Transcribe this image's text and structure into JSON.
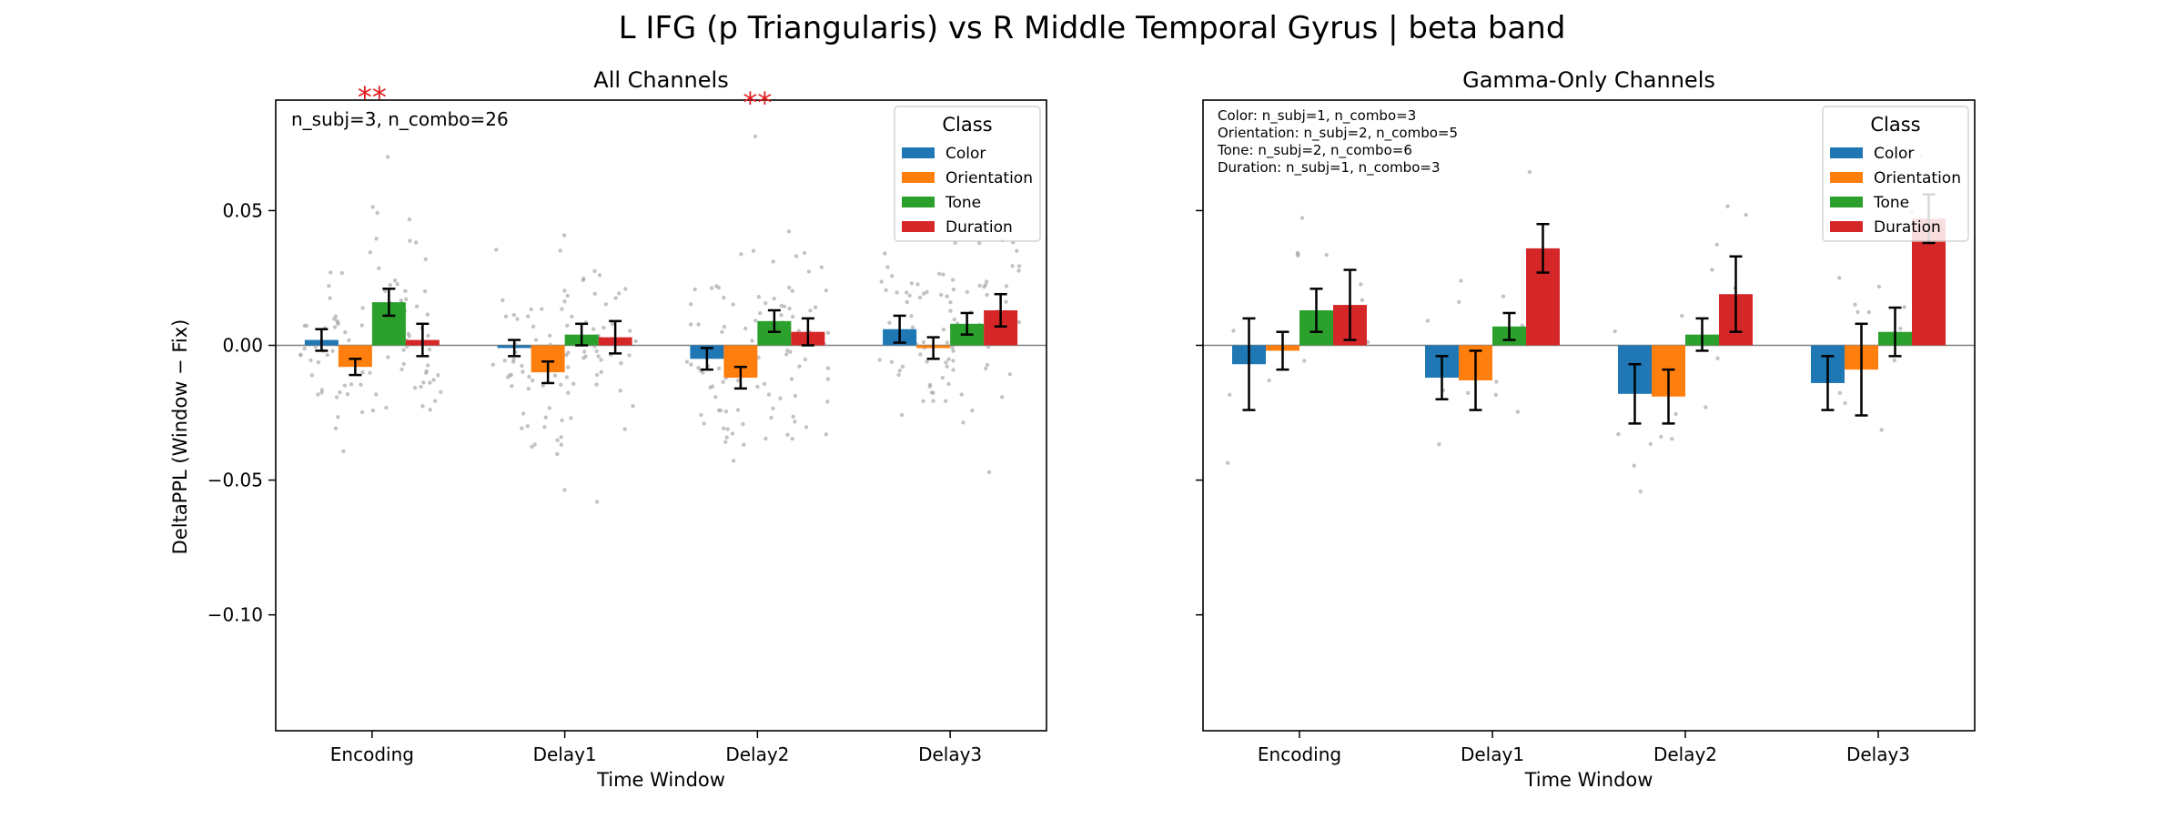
{
  "figure": {
    "suptitle": "L IFG (p Triangularis) vs R Middle Temporal Gyrus  |  beta band",
    "ylabel": "DeltaPPL (Window − Fix)",
    "xlabel": "Time Window",
    "legend_title": "Class"
  },
  "colors": {
    "Color": "#1f77b4",
    "Orientation": "#ff7f0e",
    "Tone": "#2ca02c",
    "Duration": "#d62728",
    "significance": "#e31a1c",
    "scatter": "#aaaaaa"
  },
  "chart_data": [
    {
      "type": "bar",
      "title": "All Channels",
      "categories": [
        "Encoding",
        "Delay1",
        "Delay2",
        "Delay3"
      ],
      "ylim": [
        -0.143,
        0.091
      ],
      "yticks": [
        0.05,
        0.0,
        -0.05,
        -0.1
      ],
      "ytick_labels": [
        "0.05",
        "0.00",
        "−0.05",
        "−0.10"
      ],
      "legend_placement": "top-right",
      "annotation_lines": [
        "n_subj=3, n_combo=26"
      ],
      "significance": [
        {
          "category": "Encoding",
          "label": "**"
        },
        {
          "category": "Delay2",
          "label": "**"
        }
      ],
      "series": [
        {
          "name": "Color",
          "values": [
            0.002,
            -0.001,
            -0.005,
            0.006
          ],
          "errors": [
            0.004,
            0.003,
            0.004,
            0.005
          ]
        },
        {
          "name": "Orientation",
          "values": [
            -0.008,
            -0.01,
            -0.012,
            -0.001
          ],
          "errors": [
            0.003,
            0.004,
            0.004,
            0.004
          ]
        },
        {
          "name": "Tone",
          "values": [
            0.016,
            0.004,
            0.009,
            0.008
          ],
          "errors": [
            0.005,
            0.004,
            0.004,
            0.004
          ]
        },
        {
          "name": "Duration",
          "values": [
            0.002,
            0.003,
            0.005,
            0.013
          ],
          "errors": [
            0.006,
            0.006,
            0.005,
            0.006
          ]
        }
      ],
      "scatter_count_per_bar": 26
    },
    {
      "type": "bar",
      "title": "Gamma-Only Channels",
      "categories": [
        "Encoding",
        "Delay1",
        "Delay2",
        "Delay3"
      ],
      "ylim": [
        -0.143,
        0.091
      ],
      "yticks": [
        0.05,
        0.0,
        -0.05,
        -0.1
      ],
      "ytick_labels": [
        "",
        "",
        "",
        ""
      ],
      "legend_placement": "top-right",
      "annotation_lines": [
        "Color: n_subj=1, n_combo=3",
        "Orientation: n_subj=2, n_combo=5",
        "Tone: n_subj=2, n_combo=6",
        "Duration: n_subj=1, n_combo=3"
      ],
      "significance": [],
      "series": [
        {
          "name": "Color",
          "values": [
            -0.007,
            -0.012,
            -0.018,
            -0.014
          ],
          "errors": [
            0.017,
            0.008,
            0.011,
            0.01
          ]
        },
        {
          "name": "Orientation",
          "values": [
            -0.002,
            -0.013,
            -0.019,
            -0.009
          ],
          "errors": [
            0.007,
            0.011,
            0.01,
            0.017
          ]
        },
        {
          "name": "Tone",
          "values": [
            0.013,
            0.007,
            0.004,
            0.005
          ],
          "errors": [
            0.008,
            0.005,
            0.006,
            0.009
          ]
        },
        {
          "name": "Duration",
          "values": [
            0.015,
            0.036,
            0.019,
            0.047
          ],
          "errors": [
            0.013,
            0.009,
            0.014,
            0.009
          ]
        }
      ],
      "scatter_count_per_bar": 4
    }
  ]
}
